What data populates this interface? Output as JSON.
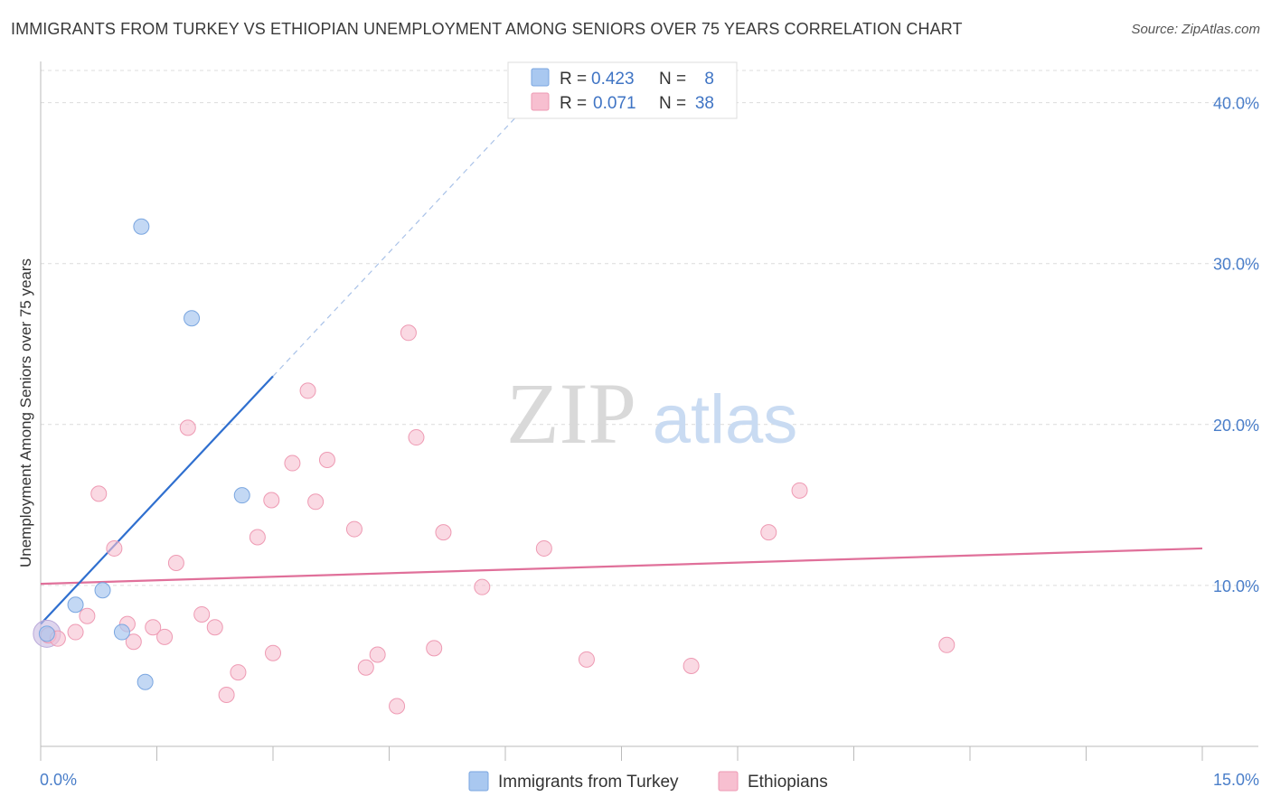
{
  "header": {
    "title": "IMMIGRANTS FROM TURKEY VS ETHIOPIAN UNEMPLOYMENT AMONG SENIORS OVER 75 YEARS CORRELATION CHART",
    "source": "Source: ZipAtlas.com"
  },
  "watermark": {
    "zip": "ZIP",
    "atlas": "atlas"
  },
  "legend": {
    "r_label": "R =",
    "n_label": "N =",
    "rows": [
      {
        "r": "0.423",
        "n": "8",
        "color": "#a9c8f0",
        "stroke": "#7aa6e0"
      },
      {
        "r": "0.071",
        "n": "38",
        "color": "#f7bfd0",
        "stroke": "#ee9ab3"
      }
    ]
  },
  "chart_data": {
    "type": "scatter",
    "title": "IMMIGRANTS FROM TURKEY VS ETHIOPIAN UNEMPLOYMENT AMONG SENIORS OVER 75 YEARS CORRELATION CHART",
    "xlabel": "",
    "ylabel": "Unemployment Among Seniors over 75 years",
    "xlim": [
      0,
      15
    ],
    "ylim": [
      0,
      42
    ],
    "x_tick_labels": [
      "0.0%",
      "15.0%"
    ],
    "y_ticks": [
      10,
      20,
      30,
      40
    ],
    "y_tick_labels": [
      "10.0%",
      "20.0%",
      "30.0%",
      "40.0%"
    ],
    "series": [
      {
        "name": "Immigrants from Turkey",
        "color": "#a9c8f0",
        "stroke": "#7aa6e0",
        "line_color": "#2f6fcf",
        "points": [
          {
            "x": 0.08,
            "y": 7.0
          },
          {
            "x": 0.45,
            "y": 8.8
          },
          {
            "x": 0.8,
            "y": 9.7
          },
          {
            "x": 1.05,
            "y": 7.1
          },
          {
            "x": 1.35,
            "y": 4.0
          },
          {
            "x": 1.3,
            "y": 32.3
          },
          {
            "x": 1.95,
            "y": 26.6
          },
          {
            "x": 2.6,
            "y": 15.6
          }
        ],
        "trend": {
          "x0": 0.0,
          "y0": 7.6,
          "x1": 3.0,
          "y1": 23.0,
          "x_dash_end": 6.2
        }
      },
      {
        "name": "Ethiopians",
        "color": "#f7bfd0",
        "stroke": "#ee9ab3",
        "line_color": "#e0709a",
        "points": [
          {
            "x": 0.1,
            "y": 6.9
          },
          {
            "x": 0.22,
            "y": 6.7
          },
          {
            "x": 0.45,
            "y": 7.1
          },
          {
            "x": 0.6,
            "y": 8.1
          },
          {
            "x": 0.75,
            "y": 15.7
          },
          {
            "x": 0.95,
            "y": 12.3
          },
          {
            "x": 1.12,
            "y": 7.6
          },
          {
            "x": 1.2,
            "y": 6.5
          },
          {
            "x": 1.45,
            "y": 7.4
          },
          {
            "x": 1.6,
            "y": 6.8
          },
          {
            "x": 1.75,
            "y": 11.4
          },
          {
            "x": 1.9,
            "y": 19.8
          },
          {
            "x": 2.08,
            "y": 8.2
          },
          {
            "x": 2.25,
            "y": 7.4
          },
          {
            "x": 2.4,
            "y": 3.2
          },
          {
            "x": 2.55,
            "y": 4.6
          },
          {
            "x": 2.8,
            "y": 13.0
          },
          {
            "x": 3.0,
            "y": 5.8
          },
          {
            "x": 2.98,
            "y": 15.3
          },
          {
            "x": 3.25,
            "y": 17.6
          },
          {
            "x": 3.45,
            "y": 22.1
          },
          {
            "x": 3.55,
            "y": 15.2
          },
          {
            "x": 3.7,
            "y": 17.8
          },
          {
            "x": 4.05,
            "y": 13.5
          },
          {
            "x": 4.2,
            "y": 4.9
          },
          {
            "x": 4.35,
            "y": 5.7
          },
          {
            "x": 4.6,
            "y": 2.5
          },
          {
            "x": 4.75,
            "y": 25.7
          },
          {
            "x": 4.85,
            "y": 19.2
          },
          {
            "x": 5.08,
            "y": 6.1
          },
          {
            "x": 5.2,
            "y": 13.3
          },
          {
            "x": 5.7,
            "y": 9.9
          },
          {
            "x": 6.5,
            "y": 12.3
          },
          {
            "x": 7.05,
            "y": 5.4
          },
          {
            "x": 8.4,
            "y": 5.0
          },
          {
            "x": 9.4,
            "y": 13.3
          },
          {
            "x": 9.8,
            "y": 15.9
          },
          {
            "x": 11.7,
            "y": 6.3
          }
        ],
        "trend": {
          "x0": 0.0,
          "y0": 10.1,
          "x1": 15.0,
          "y1": 12.3
        }
      }
    ]
  }
}
